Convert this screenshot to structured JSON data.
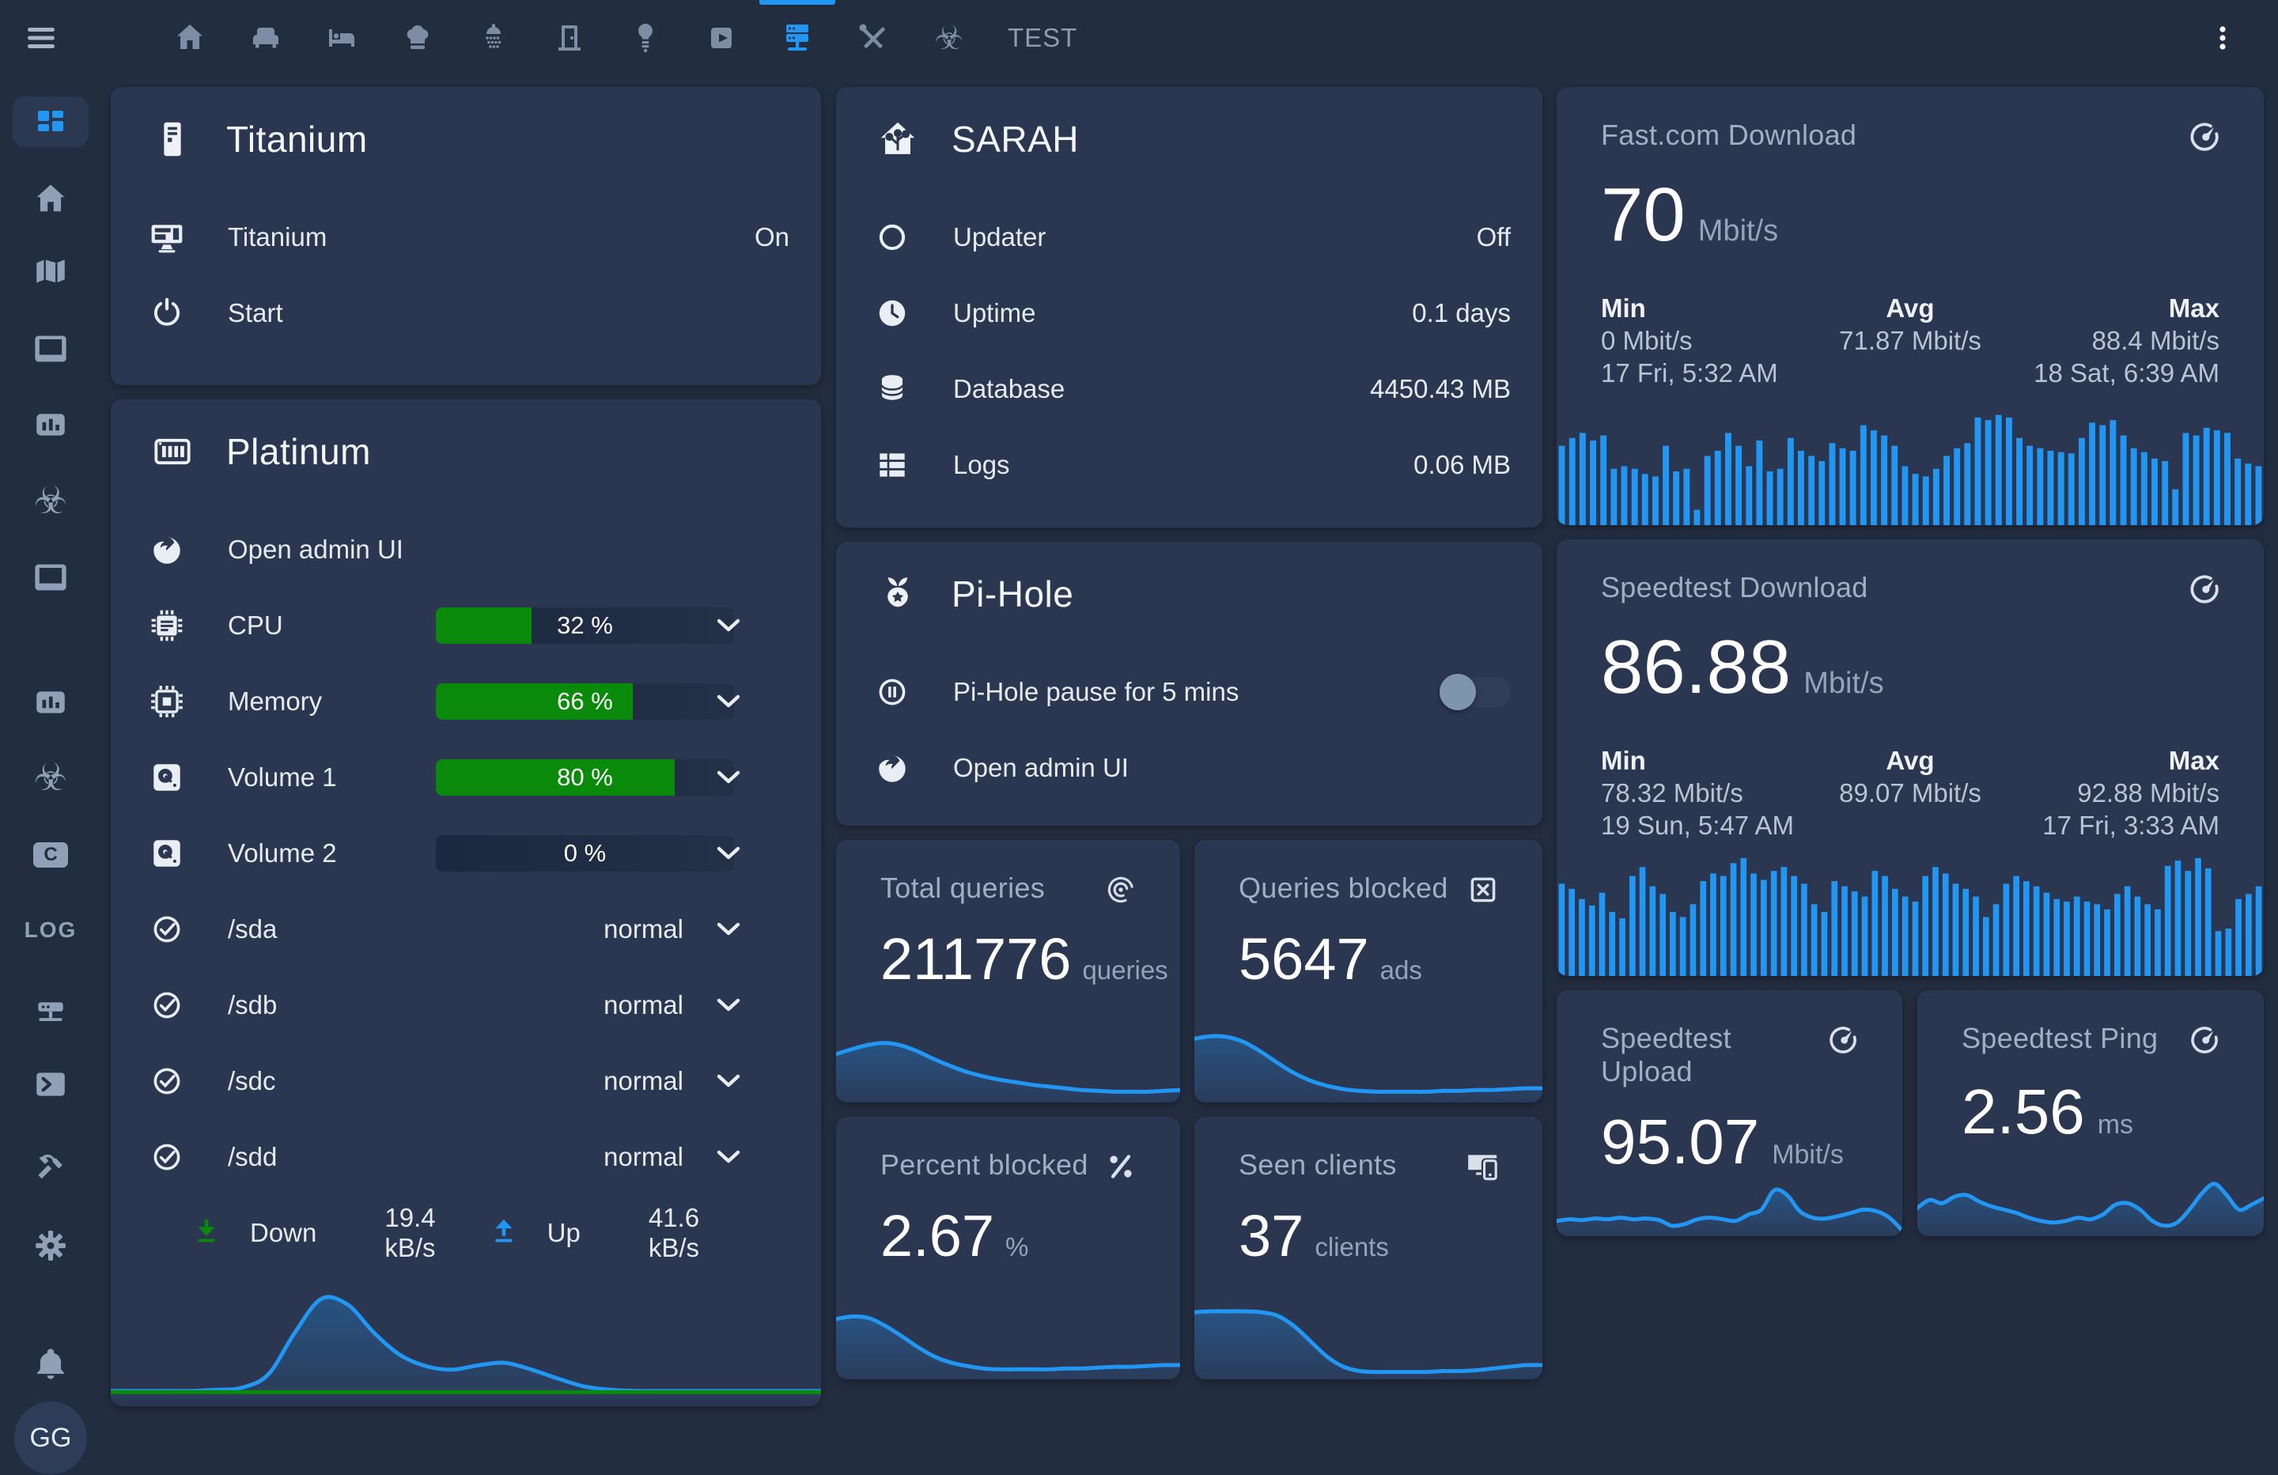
{
  "colors": {
    "accent": "#2196f3",
    "green": "#0a8a0a",
    "card_bg": "#2b3651",
    "page_bg": "#232d40"
  },
  "topbar": {
    "test_tab": "TEST",
    "tabs": [
      "home",
      "sofa",
      "bed",
      "chef-hat",
      "shower",
      "door",
      "lightbulb",
      "video",
      "server-network",
      "tools",
      "biohazard"
    ],
    "active_tab_index": 8,
    "biohazard_glyph": "☣"
  },
  "sidebar": {
    "c_badge": "C",
    "log_label": "LOG",
    "avatar": "GG",
    "biohazard_glyph": "☣"
  },
  "titanium": {
    "title": "Titanium",
    "rows": [
      {
        "label": "Titanium",
        "value": "On"
      },
      {
        "label": "Start",
        "value": ""
      }
    ]
  },
  "platinum": {
    "title": "Platinum",
    "admin_label": "Open admin UI",
    "gauges": [
      {
        "label": "CPU",
        "percent": 32,
        "display": "32 %"
      },
      {
        "label": "Memory",
        "percent": 66,
        "display": "66 %"
      },
      {
        "label": "Volume 1",
        "percent": 80,
        "display": "80 %"
      },
      {
        "label": "Volume 2",
        "percent": 0,
        "display": "0 %"
      }
    ],
    "disks": [
      {
        "label": "/sda",
        "value": "normal"
      },
      {
        "label": "/sdb",
        "value": "normal"
      },
      {
        "label": "/sdc",
        "value": "normal"
      },
      {
        "label": "/sdd",
        "value": "normal"
      }
    ],
    "down_label": "Down",
    "down_value": "19.4 kB/s",
    "up_label": "Up",
    "up_value": "41.6 kB/s"
  },
  "sarah": {
    "title": "SARAH",
    "rows": [
      {
        "label": "Updater",
        "value": "Off"
      },
      {
        "label": "Uptime",
        "value": "0.1 days"
      },
      {
        "label": "Database",
        "value": "4450.43 MB"
      },
      {
        "label": "Logs",
        "value": "0.06 MB"
      }
    ]
  },
  "pihole": {
    "title": "Pi-Hole",
    "pause_label": "Pi-Hole pause for 5 mins",
    "toggle_state": "off",
    "admin_label": "Open admin UI"
  },
  "stats": [
    {
      "title": "Total queries",
      "value": "211776",
      "unit": "queries",
      "icon": "tracker-icon"
    },
    {
      "title": "Queries blocked",
      "value": "5647",
      "unit": "ads",
      "icon": "close-box-icon"
    },
    {
      "title": "Percent blocked",
      "value": "2.67",
      "unit": "%",
      "icon": "percent-icon"
    },
    {
      "title": "Seen clients",
      "value": "37",
      "unit": "clients",
      "icon": "monitor-cellphone-icon"
    }
  ],
  "fastcom": {
    "title": "Fast.com Download",
    "value": "70",
    "unit": "Mbit/s",
    "min_label": "Min",
    "min_value": "0 Mbit/s",
    "min_time": "17 Fri, 5:32 AM",
    "avg_label": "Avg",
    "avg_value": "71.87 Mbit/s",
    "max_label": "Max",
    "max_value": "88.4 Mbit/s",
    "max_time": "18 Sat, 6:39 AM"
  },
  "speedtest_download": {
    "title": "Speedtest Download",
    "value": "86.88",
    "unit": "Mbit/s",
    "min_label": "Min",
    "min_value": "78.32 Mbit/s",
    "min_time": "19 Sun, 5:47 AM",
    "avg_label": "Avg",
    "avg_value": "89.07 Mbit/s",
    "max_label": "Max",
    "max_value": "92.88 Mbit/s",
    "max_time": "17 Fri, 3:33 AM"
  },
  "speedtest_upload": {
    "title": "Speedtest Upload",
    "value": "95.07",
    "unit": "Mbit/s"
  },
  "speedtest_ping": {
    "title": "Speedtest Ping",
    "value": "2.56",
    "unit": "ms"
  },
  "charts": {
    "fastcom": {
      "type": "bar",
      "color": "#2196f3",
      "values": [
        0.62,
        0.68,
        0.72,
        0.66,
        0.7,
        0.44,
        0.46,
        0.44,
        0.4,
        0.38,
        0.62,
        0.42,
        0.44,
        0.12,
        0.54,
        0.58,
        0.72,
        0.62,
        0.46,
        0.66,
        0.42,
        0.44,
        0.68,
        0.58,
        0.54,
        0.5,
        0.64,
        0.6,
        0.58,
        0.78,
        0.74,
        0.7,
        0.62,
        0.46,
        0.4,
        0.38,
        0.44,
        0.54,
        0.6,
        0.64,
        0.84,
        0.82,
        0.86,
        0.84,
        0.68,
        0.62,
        0.6,
        0.58,
        0.57,
        0.56,
        0.68,
        0.8,
        0.78,
        0.82,
        0.7,
        0.6,
        0.57,
        0.52,
        0.5,
        0.28,
        0.72,
        0.7,
        0.76,
        0.74,
        0.72,
        0.52,
        0.48,
        0.46
      ]
    },
    "download": {
      "type": "bar",
      "color": "#2196f3",
      "values": [
        0.72,
        0.68,
        0.6,
        0.55,
        0.65,
        0.5,
        0.45,
        0.78,
        0.85,
        0.7,
        0.64,
        0.5,
        0.46,
        0.56,
        0.74,
        0.8,
        0.78,
        0.88,
        0.92,
        0.8,
        0.75,
        0.82,
        0.85,
        0.78,
        0.72,
        0.56,
        0.5,
        0.74,
        0.7,
        0.66,
        0.62,
        0.82,
        0.78,
        0.68,
        0.62,
        0.58,
        0.78,
        0.85,
        0.8,
        0.72,
        0.68,
        0.62,
        0.46,
        0.56,
        0.72,
        0.78,
        0.74,
        0.7,
        0.65,
        0.6,
        0.58,
        0.62,
        0.58,
        0.56,
        0.52,
        0.64,
        0.7,
        0.62,
        0.56,
        0.52,
        0.86,
        0.9,
        0.82,
        0.92,
        0.84,
        0.35,
        0.37,
        0.6,
        0.64,
        0.7
      ]
    },
    "q_total": {
      "type": "area",
      "color": "#2196f3",
      "values": [
        0.52,
        0.58,
        0.63,
        0.65,
        0.62,
        0.55,
        0.46,
        0.38,
        0.31,
        0.26,
        0.22,
        0.19,
        0.16,
        0.14,
        0.12,
        0.1,
        0.09,
        0.08,
        0.08,
        0.08,
        0.09,
        0.1
      ]
    },
    "q_blocked": {
      "type": "area",
      "color": "#2196f3",
      "values": [
        0.7,
        0.73,
        0.72,
        0.66,
        0.55,
        0.42,
        0.3,
        0.21,
        0.15,
        0.11,
        0.09,
        0.08,
        0.08,
        0.08,
        0.08,
        0.09,
        0.09,
        0.1,
        0.1,
        0.11,
        0.12,
        0.12
      ]
    },
    "q_percent": {
      "type": "area",
      "color": "#2196f3",
      "values": [
        0.66,
        0.69,
        0.67,
        0.58,
        0.46,
        0.33,
        0.22,
        0.15,
        0.11,
        0.08,
        0.07,
        0.07,
        0.07,
        0.07,
        0.08,
        0.08,
        0.09,
        0.1,
        0.1,
        0.11,
        0.12,
        0.12
      ]
    },
    "q_clients": {
      "type": "area",
      "color": "#2196f3",
      "values": [
        0.74,
        0.75,
        0.75,
        0.75,
        0.74,
        0.7,
        0.58,
        0.4,
        0.22,
        0.1,
        0.05,
        0.04,
        0.04,
        0.04,
        0.04,
        0.05,
        0.05,
        0.06,
        0.08,
        0.1,
        0.12,
        0.12
      ]
    },
    "upload": {
      "type": "area",
      "color": "#2196f3",
      "values": [
        0.14,
        0.16,
        0.15,
        0.17,
        0.16,
        0.18,
        0.16,
        0.17,
        0.15,
        0.08,
        0.1,
        0.16,
        0.18,
        0.16,
        0.14,
        0.22,
        0.28,
        0.52,
        0.46,
        0.26,
        0.18,
        0.17,
        0.2,
        0.24,
        0.28,
        0.26,
        0.18,
        0.02
      ]
    },
    "ping": {
      "type": "area",
      "color": "#2196f3",
      "values": [
        0.3,
        0.4,
        0.36,
        0.44,
        0.46,
        0.38,
        0.32,
        0.28,
        0.24,
        0.18,
        0.14,
        0.12,
        0.14,
        0.18,
        0.16,
        0.22,
        0.34,
        0.36,
        0.28,
        0.14,
        0.08,
        0.12,
        0.28,
        0.48,
        0.6,
        0.46,
        0.28,
        0.34,
        0.42
      ]
    },
    "platinum_net": {
      "type": "multi",
      "series": [
        {
          "color": "#2196f3",
          "fill": true,
          "values": [
            0.03,
            0.03,
            0.03,
            0.03,
            0.04,
            0.06,
            0.18,
            0.55,
            0.85,
            0.8,
            0.55,
            0.35,
            0.25,
            0.22,
            0.26,
            0.28,
            0.22,
            0.14,
            0.07,
            0.04,
            0.03,
            0.03,
            0.03,
            0.03,
            0.03,
            0.03,
            0.03,
            0.03
          ]
        },
        {
          "color": "#0a8a0a",
          "fill": false,
          "values": [
            0.02,
            0.02,
            0.02,
            0.02,
            0.02,
            0.02,
            0.02,
            0.02,
            0.02,
            0.02,
            0.02,
            0.02,
            0.02,
            0.02,
            0.02,
            0.02,
            0.02,
            0.02,
            0.02,
            0.02,
            0.02,
            0.02,
            0.02,
            0.02,
            0.02,
            0.02,
            0.02,
            0.02
          ]
        }
      ]
    }
  }
}
